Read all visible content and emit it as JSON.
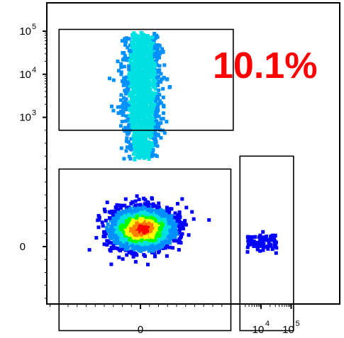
{
  "chart_data": {
    "type": "scatter",
    "title": "",
    "xlabel": "",
    "ylabel": "",
    "x_scale": "biexponential",
    "y_scale": "biexponential",
    "x_ticks": [
      {
        "value": 0,
        "base": "0",
        "exp": ""
      },
      {
        "value": 10000,
        "base": "10",
        "exp": "4"
      },
      {
        "value": 100000,
        "base": "10",
        "exp": "5"
      }
    ],
    "y_ticks": [
      {
        "value": 0,
        "base": "0",
        "exp": ""
      },
      {
        "value": 1000,
        "base": "10",
        "exp": "3"
      },
      {
        "value": 10000,
        "base": "10",
        "exp": "4"
      },
      {
        "value": 100000,
        "base": "10",
        "exp": "5"
      }
    ],
    "annotation": {
      "text": "10.1%",
      "color": "#ff0000"
    },
    "colormap": [
      "#0000ff",
      "#0090ff",
      "#00e0e0",
      "#00ff00",
      "#ffff00",
      "#ff8000",
      "#ff0000"
    ],
    "gates": [
      {
        "name": "upper-left",
        "x_range": [
          -900,
          1200
        ],
        "y_range": [
          900,
          110000
        ]
      },
      {
        "name": "lower-left",
        "x_range": [
          -900,
          1000
        ],
        "y_range": [
          -650,
          600
        ]
      },
      {
        "name": "lower-right",
        "x_range": [
          2000,
          120000
        ],
        "y_range": [
          -650,
          700
        ]
      }
    ],
    "populations": [
      {
        "name": "double-negative",
        "x_center": 0,
        "y_center": 150,
        "density": "high"
      },
      {
        "name": "y-positive",
        "x_center": 0,
        "y_range": [
          600,
          90000
        ],
        "density": "medium"
      },
      {
        "name": "x-positive",
        "x_range": [
          3000,
          30000
        ],
        "y_center": 50,
        "density": "low"
      }
    ]
  }
}
